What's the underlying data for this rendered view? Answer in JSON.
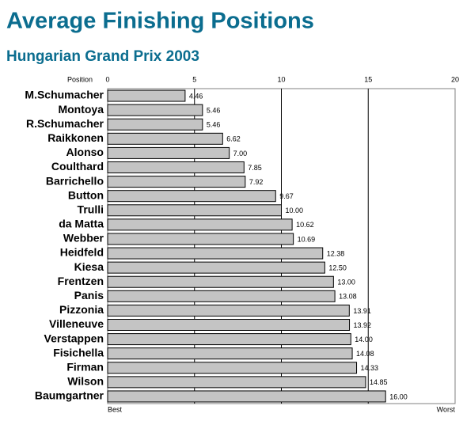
{
  "chart_data": {
    "type": "barh",
    "title": "Average Finishing Positions",
    "subtitle": "Hungarian Grand Prix 2003",
    "x_axis_label": "Position",
    "axis_end_labels": [
      "Best",
      "Worst"
    ],
    "categories": [
      "M.Schumacher",
      "Montoya",
      "R.Schumacher",
      "Raikkonen",
      "Alonso",
      "Coulthard",
      "Barrichello",
      "Button",
      "Trulli",
      "da Matta",
      "Webber",
      "Heidfeld",
      "Kiesa",
      "Frentzen",
      "Panis",
      "Pizzonia",
      "Villeneuve",
      "Verstappen",
      "Fisichella",
      "Firman",
      "Wilson",
      "Baumgartner"
    ],
    "values": [
      4.46,
      5.46,
      5.46,
      6.62,
      7.0,
      7.85,
      7.92,
      9.67,
      10.0,
      10.62,
      10.69,
      12.38,
      12.5,
      13.0,
      13.08,
      13.91,
      13.92,
      14.0,
      14.08,
      14.33,
      14.85,
      16.0
    ],
    "value_labels": [
      "4.46",
      "5.46",
      "5.46",
      "6.62",
      "7.00",
      "7.85",
      "7.92",
      "9.67",
      "10.00",
      "10.62",
      "10.69",
      "12.38",
      "12.50",
      "13.00",
      "13.08",
      "13.91",
      "13.92",
      "14.00",
      "14.08",
      "14.33",
      "14.85",
      "16.00"
    ],
    "color": "#c4c4c4",
    "xlim": [
      0,
      20
    ],
    "xticks": [
      0,
      5,
      10,
      15,
      20
    ],
    "grid": true
  }
}
